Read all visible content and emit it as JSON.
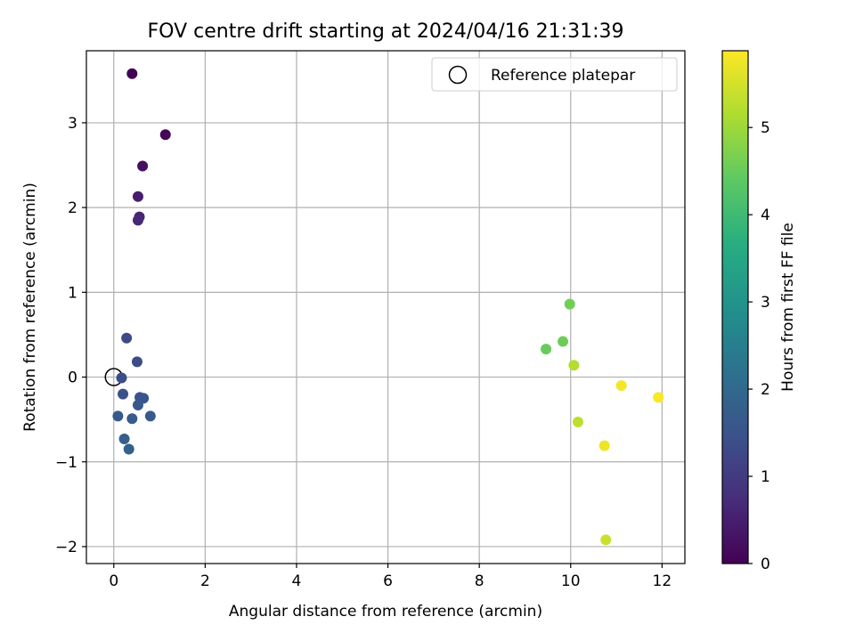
{
  "chart_data": {
    "type": "scatter",
    "title": "FOV centre drift starting at 2024/04/16 21:31:39",
    "xlabel": "Angular distance from reference (arcmin)",
    "ylabel": "Rotation from reference (arcmin)",
    "xlim": [
      -0.6,
      12.5
    ],
    "ylim": [
      -2.2,
      3.85
    ],
    "xticks": [
      0,
      2,
      4,
      6,
      8,
      10,
      12
    ],
    "xtick_labels": [
      "0",
      "2",
      "4",
      "6",
      "8",
      "10",
      "12"
    ],
    "yticks": [
      -2,
      -1,
      0,
      1,
      2,
      3
    ],
    "ytick_labels": [
      "−2",
      "−1",
      "0",
      "1",
      "2",
      "3"
    ],
    "grid": true,
    "legend": {
      "placement": "top-right",
      "entries": [
        {
          "label": "Reference platepar",
          "marker": "open-circle"
        }
      ]
    },
    "reference_point": {
      "x": 0,
      "y": 0
    },
    "colorbar": {
      "label": "Hours from first FF file",
      "colormap": "viridis",
      "range": [
        0,
        5.88
      ],
      "ticks": [
        0,
        1,
        2,
        3,
        4,
        5
      ],
      "tick_labels": [
        "0",
        "1",
        "2",
        "3",
        "4",
        "5"
      ]
    },
    "points": [
      {
        "x": 0.4,
        "y": 3.58,
        "hours": 0.0
      },
      {
        "x": 1.13,
        "y": 2.86,
        "hours": 0.08
      },
      {
        "x": 0.63,
        "y": 2.49,
        "hours": 0.25
      },
      {
        "x": 0.53,
        "y": 2.13,
        "hours": 0.45
      },
      {
        "x": 0.56,
        "y": 1.89,
        "hours": 0.6
      },
      {
        "x": 0.53,
        "y": 1.85,
        "hours": 0.65
      },
      {
        "x": 0.28,
        "y": 0.46,
        "hours": 1.3
      },
      {
        "x": 0.51,
        "y": 0.18,
        "hours": 1.35
      },
      {
        "x": 0.17,
        "y": -0.01,
        "hours": 1.4
      },
      {
        "x": 0.2,
        "y": -0.2,
        "hours": 1.45
      },
      {
        "x": 0.57,
        "y": -0.24,
        "hours": 1.5
      },
      {
        "x": 0.65,
        "y": -0.25,
        "hours": 1.55
      },
      {
        "x": 0.53,
        "y": -0.33,
        "hours": 1.6
      },
      {
        "x": 0.8,
        "y": -0.46,
        "hours": 1.62
      },
      {
        "x": 0.09,
        "y": -0.46,
        "hours": 1.65
      },
      {
        "x": 0.4,
        "y": -0.49,
        "hours": 1.7
      },
      {
        "x": 0.23,
        "y": -0.73,
        "hours": 1.75
      },
      {
        "x": 0.33,
        "y": -0.85,
        "hours": 1.8
      },
      {
        "x": 9.46,
        "y": 0.33,
        "hours": 4.5
      },
      {
        "x": 9.83,
        "y": 0.42,
        "hours": 4.55
      },
      {
        "x": 9.98,
        "y": 0.86,
        "hours": 4.6
      },
      {
        "x": 10.07,
        "y": 0.14,
        "hours": 5.2
      },
      {
        "x": 10.16,
        "y": -0.53,
        "hours": 5.3
      },
      {
        "x": 10.77,
        "y": -1.92,
        "hours": 5.4
      },
      {
        "x": 10.74,
        "y": -0.81,
        "hours": 5.75
      },
      {
        "x": 11.11,
        "y": -0.1,
        "hours": 5.8
      },
      {
        "x": 11.92,
        "y": -0.24,
        "hours": 5.85
      }
    ]
  }
}
